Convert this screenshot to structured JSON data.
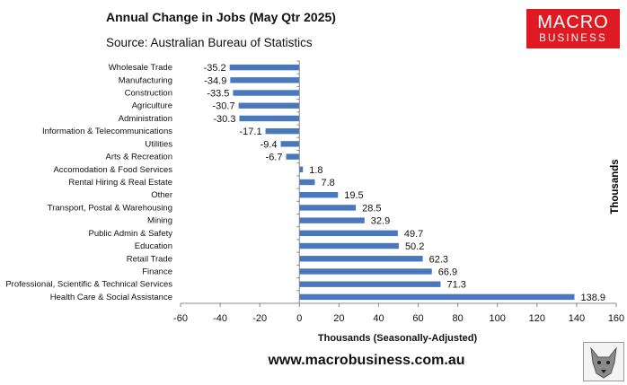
{
  "chart_data": {
    "type": "bar",
    "orientation": "horizontal",
    "title": "Annual Change in Jobs (May Qtr 2025)",
    "subtitle": "Source: Australian Bureau of Statistics",
    "xlabel": "Thousands (Seasonally-Adjusted)",
    "ylabel": "Thousands",
    "xlim": [
      -60,
      160
    ],
    "xticks": [
      -60,
      -40,
      -20,
      0,
      20,
      40,
      60,
      80,
      100,
      120,
      140,
      160
    ],
    "grid": false,
    "bar_color": "#4a78bd",
    "categories": [
      "Wholesale Trade",
      "Manufacturing",
      "Construction",
      "Agriculture",
      "Administration",
      "Information & Telecommunications",
      "Utilities",
      "Arts & Recreation",
      "Accomodation & Food Services",
      "Rental Hiring & Real Estate",
      "Other",
      "Transport, Postal & Warehousing",
      "Mining",
      "Public Admin & Safety",
      "Education",
      "Retail Trade",
      "Finance",
      "Professional, Scientific & Technical Services",
      "Health Care & Social Assistance"
    ],
    "values": [
      -35.2,
      -34.9,
      -33.5,
      -30.7,
      -30.3,
      -17.1,
      -9.4,
      -6.7,
      1.8,
      7.8,
      19.5,
      28.5,
      32.9,
      49.7,
      50.2,
      62.3,
      66.9,
      71.3,
      138.9
    ]
  },
  "branding": {
    "logo_line1": "MACRO",
    "logo_line2": "BUSINESS",
    "logo_color": "#e01a22",
    "website": "www.macrobusiness.com.au",
    "wolf_icon": "wolf-logo-icon"
  }
}
